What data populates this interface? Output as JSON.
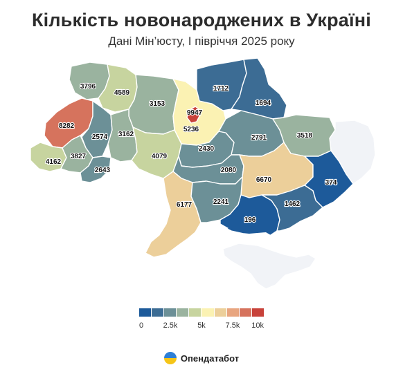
{
  "header": {
    "title": "Кількість новонароджених в Україні",
    "subtitle": "Дані Мін’юсту, І півріччя 2025 року"
  },
  "colors": {
    "no_data": "#f1f3f7",
    "scale": [
      "#1d5a9a",
      "#3c6c94",
      "#6c9097",
      "#9ab39f",
      "#c7d49f",
      "#fbf2b3",
      "#eccf9a",
      "#e8a57f",
      "#d6735d",
      "#c8423a"
    ]
  },
  "map": {
    "regions": [
      {
        "name": "Волинська",
        "value": 3796
      },
      {
        "name": "Рівненська",
        "value": 4589
      },
      {
        "name": "Житомирська",
        "value": 3153
      },
      {
        "name": "Київська",
        "value": 5236
      },
      {
        "name": "м. Київ",
        "value": 9947
      },
      {
        "name": "Чернігівська",
        "value": 1712
      },
      {
        "name": "Сумська",
        "value": 1694
      },
      {
        "name": "Львівська",
        "value": 8282
      },
      {
        "name": "Тернопільська",
        "value": 2574
      },
      {
        "name": "Хмельницька",
        "value": 3162
      },
      {
        "name": "Закарпатська",
        "value": 4162
      },
      {
        "name": "Івано-Франківська",
        "value": 3827
      },
      {
        "name": "Чернівецька",
        "value": 2643
      },
      {
        "name": "Вінницька",
        "value": 4079
      },
      {
        "name": "Черкаська",
        "value": 2430
      },
      {
        "name": "Полтавська",
        "value": 2791
      },
      {
        "name": "Харківська",
        "value": 3518
      },
      {
        "name": "Кіровоградська",
        "value": 2080
      },
      {
        "name": "Дніпропетровська",
        "value": 6670
      },
      {
        "name": "Донецька",
        "value": 374
      },
      {
        "name": "Луганська",
        "value": null
      },
      {
        "name": "Одеська",
        "value": 6177
      },
      {
        "name": "Миколаївська",
        "value": 2241
      },
      {
        "name": "Херсонська",
        "value": 196
      },
      {
        "name": "Запорізька",
        "value": 1462
      },
      {
        "name": "АР Крим",
        "value": null
      }
    ]
  },
  "legend": {
    "min": 0,
    "max": 10000,
    "ticks": [
      "0",
      "2.5k",
      "5k",
      "7.5k",
      "10k"
    ]
  },
  "brand": {
    "name": "Опендатабот"
  }
}
